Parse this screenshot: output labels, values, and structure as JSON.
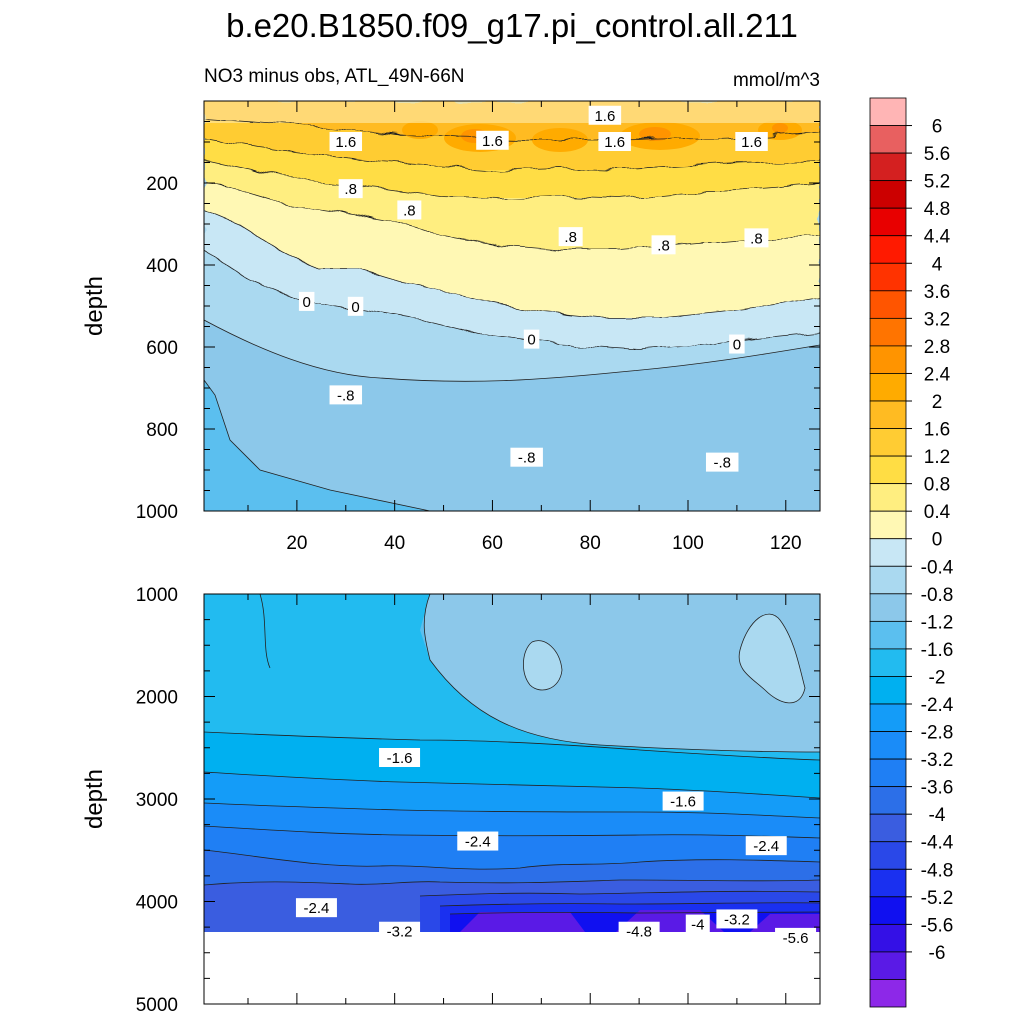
{
  "chart_data": {
    "type": "contour",
    "title": "b.e20.B1850.f09_g17.pi_control.all.211",
    "subtitle_left": "NO3 minus obs, ATL_49N-66N",
    "subtitle_right": "mmol/m^3",
    "colorbar": {
      "colors": [
        "#ffb5b5",
        "#e86060",
        "#d42020",
        "#cc0000",
        "#e80000",
        "#ff1a00",
        "#ff3300",
        "#ff5500",
        "#ff7400",
        "#ff9400",
        "#ffab00",
        "#ffbb22",
        "#ffcc33",
        "#ffdd44",
        "#ffee80",
        "#fff8b4",
        "#c8e7f5",
        "#aad9f0",
        "#8cc8ea",
        "#5bbfef",
        "#22bbf0",
        "#00b0f0",
        "#149cf8",
        "#1a8cf8",
        "#1f7ff4",
        "#2c6fe8",
        "#3a5de0",
        "#2a48e8",
        "#1a30f0",
        "#1010f0",
        "#3410e6",
        "#5a1ae6",
        "#8d28e8"
      ],
      "labels": [
        "6",
        "5.6",
        "5.2",
        "4.8",
        "4.4",
        "4",
        "3.6",
        "3.2",
        "2.8",
        "2.4",
        "2",
        "1.6",
        "1.2",
        "0.8",
        "0.4",
        "0",
        "-0.4",
        "-0.8",
        "-1.2",
        "-1.6",
        "-2",
        "-2.4",
        "-2.8",
        "-3.2",
        "-3.6",
        "-4",
        "-4.4",
        "-4.8",
        "-5.2",
        "-5.6",
        "-6"
      ]
    },
    "panels": [
      {
        "name": "upper",
        "xlabel": "",
        "ylabel": "depth",
        "xlim": [
          1,
          127
        ],
        "ylim": [
          1000,
          0
        ],
        "xticks": [
          20,
          40,
          60,
          80,
          100,
          120
        ],
        "yticks": [
          200,
          400,
          600,
          800,
          1000
        ],
        "contour_labels": [
          {
            "text": "1.6",
            "x": 30,
            "y": 100
          },
          {
            "text": "1.6",
            "x": 60,
            "y": 97
          },
          {
            "text": "1.6",
            "x": 83,
            "y": 36
          },
          {
            "text": "1.6",
            "x": 85,
            "y": 100
          },
          {
            "text": "1.6",
            "x": 113,
            "y": 100
          },
          {
            "text": ".8",
            "x": 31,
            "y": 215
          },
          {
            "text": ".8",
            "x": 43,
            "y": 267
          },
          {
            "text": ".8",
            "x": 76,
            "y": 332
          },
          {
            "text": ".8",
            "x": 95,
            "y": 352
          },
          {
            "text": ".8",
            "x": 114,
            "y": 335
          },
          {
            "text": "0",
            "x": 22,
            "y": 490
          },
          {
            "text": "0",
            "x": 32,
            "y": 502
          },
          {
            "text": "0",
            "x": 68,
            "y": 582
          },
          {
            "text": "0",
            "x": 110,
            "y": 594
          },
          {
            "text": "-.8",
            "x": 30,
            "y": 718
          },
          {
            "text": "-.8",
            "x": 67,
            "y": 870
          },
          {
            "text": "-.8",
            "x": 107,
            "y": 882
          }
        ]
      },
      {
        "name": "lower",
        "xlabel": "",
        "ylabel": "depth",
        "xlim": [
          1,
          127
        ],
        "ylim": [
          5000,
          1000
        ],
        "xticks": [],
        "yticks": [
          1000,
          2000,
          3000,
          4000,
          5000
        ],
        "contour_labels": [
          {
            "text": "-1.6",
            "x": 41,
            "y": 2600
          },
          {
            "text": "-1.6",
            "x": 99,
            "y": 3025
          },
          {
            "text": "-2.4",
            "x": 57,
            "y": 3415
          },
          {
            "text": "-2.4",
            "x": 116,
            "y": 3460
          },
          {
            "text": "-2.4",
            "x": 24,
            "y": 4065
          },
          {
            "text": "-3.2",
            "x": 41,
            "y": 4295
          },
          {
            "text": "-4.8",
            "x": 90,
            "y": 4295
          },
          {
            "text": "-4",
            "x": 102,
            "y": 4225
          },
          {
            "text": "-3.2",
            "x": 110,
            "y": 4175
          },
          {
            "text": "-5.6",
            "x": 122,
            "y": 4355
          }
        ]
      }
    ]
  }
}
